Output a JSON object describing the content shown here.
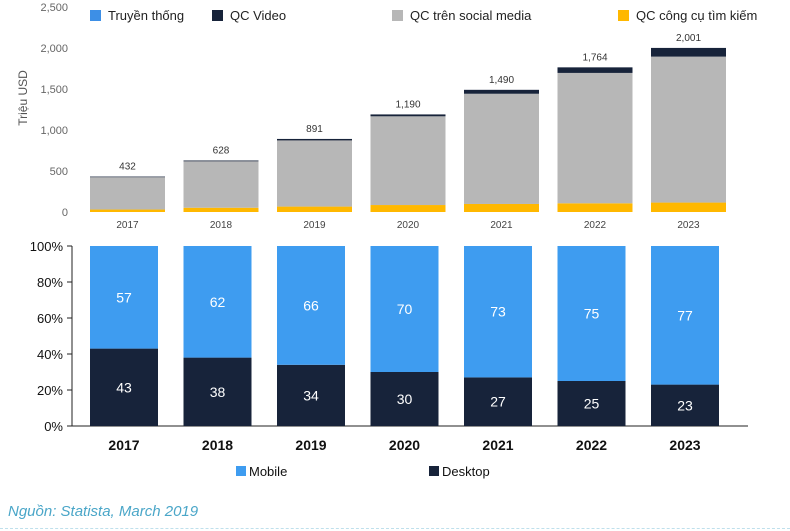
{
  "chart_data": [
    {
      "type": "bar",
      "stacked": true,
      "categories": [
        "2017",
        "2018",
        "2019",
        "2020",
        "2021",
        "2022",
        "2023"
      ],
      "ylabel": "Triệu USD",
      "ylim": [
        0,
        2500
      ],
      "yticks": [
        "0",
        "500",
        "1,000",
        "1,500",
        "2,000",
        "2,500"
      ],
      "grid": false,
      "legend_position": "top",
      "legend": [
        "Truyền thống",
        "QC Video",
        "QC trên social media",
        "QC công cụ tìm kiếm"
      ],
      "totals": [
        "432",
        "628",
        "891",
        "1,190",
        "1,490",
        "1,764",
        "2,001"
      ],
      "series": [
        {
          "name": "QC công cụ tìm kiếm",
          "color": "#ffb800",
          "values": [
            30,
            52,
            66,
            85,
            98,
            106,
            115
          ]
        },
        {
          "name": "QC trên social media",
          "color": "#b7b7b7",
          "values": [
            394,
            566,
            807,
            1082,
            1344,
            1590,
            1780
          ]
        },
        {
          "name": "QC Video",
          "color": "#17233a",
          "values": [
            8,
            10,
            18,
            23,
            48,
            68,
            106
          ]
        },
        {
          "name": "Truyền thống",
          "color": "#3d8fe6",
          "values": [
            0,
            0,
            0,
            0,
            0,
            0,
            0
          ]
        }
      ]
    },
    {
      "type": "bar",
      "stacked": true,
      "percent": true,
      "categories": [
        "2017",
        "2018",
        "2019",
        "2020",
        "2021",
        "2022",
        "2023"
      ],
      "ylim": [
        0,
        100
      ],
      "yticks": [
        "0%",
        "20%",
        "40%",
        "60%",
        "80%",
        "100%"
      ],
      "grid": false,
      "legend_position": "bottom",
      "legend": [
        "Mobile",
        "Desktop"
      ],
      "series": [
        {
          "name": "Desktop",
          "color": "#17233a",
          "values": [
            43,
            38,
            34,
            30,
            27,
            25,
            23
          ]
        },
        {
          "name": "Mobile",
          "color": "#3e9cf0",
          "values": [
            57,
            62,
            66,
            70,
            73,
            75,
            77
          ]
        }
      ]
    }
  ],
  "source": "Nguồn: Statista, March 2019"
}
